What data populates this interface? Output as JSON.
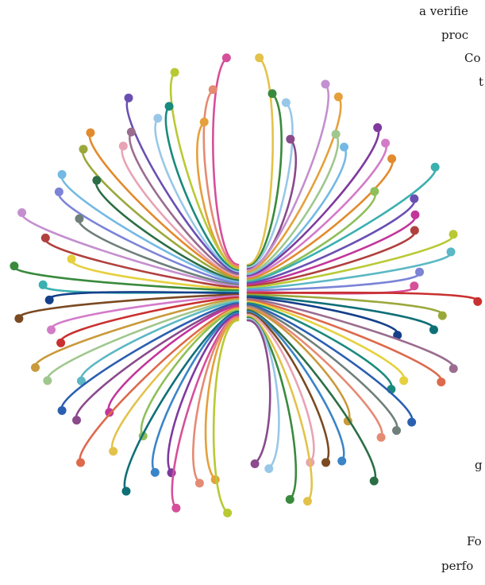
{
  "text_fragments": {
    "t1": "a verifie",
    "t2": "proc",
    "t3": "Co",
    "t4": "t",
    "t5": "g",
    "t6": "Fo",
    "t7": "perfo"
  },
  "palette": {
    "pink": "#d64f9a",
    "magenta": "#c2369a",
    "orchid": "#d37bc9",
    "lilac": "#c48fcf",
    "rose": "#e8a3b4",
    "salmon": "#e58a73",
    "coral": "#dd6a4c",
    "red": "#c9302f",
    "brick": "#b0413e",
    "orange": "#e38a2c",
    "tangerine": "#e5a03c",
    "gold": "#e3c24a",
    "mustard": "#c99a3a",
    "yellow": "#e6d03e",
    "olive": "#9aa83b",
    "lime": "#b9c934",
    "lightgreen": "#8fbf5a",
    "sage": "#9fc78e",
    "green": "#3a8a3d",
    "forest": "#2b6e46",
    "teal": "#1a8a7d",
    "darkteal": "#0f6f77",
    "cyan": "#5bb8c4",
    "turquoise": "#3bb0b0",
    "sky": "#74b9e3",
    "lightblue": "#98c7e8",
    "blue": "#3a84c8",
    "royal": "#2b5fb0",
    "navy": "#143f8a",
    "periwinkle": "#7b84d6",
    "violet": "#6a4fb3",
    "purple": "#7e3a9e",
    "plum": "#8a4a8c",
    "brown": "#7a4a22",
    "gray": "#6f7f7a",
    "mauve": "#9a6c8f"
  },
  "dot_colors": [
    "#d64f9a",
    "#c2369a",
    "#d37bc9",
    "#c48fcf",
    "#e8a3b4",
    "#e58a73",
    "#dd6a4c",
    "#c9302f",
    "#b0413e",
    "#e38a2c",
    "#e5a03c",
    "#e3c24a",
    "#c99a3a",
    "#e6d03e",
    "#9aa83b",
    "#b9c934",
    "#8fbf5a",
    "#9fc78e",
    "#3a8a3d",
    "#2b6e46",
    "#1a8a7d",
    "#0f6f77",
    "#5bb8c4",
    "#3bb0b0",
    "#74b9e3",
    "#98c7e8",
    "#3a84c8",
    "#2b5fb0",
    "#143f8a",
    "#7b84d6",
    "#6a4fb3",
    "#7e3a9e",
    "#8a4a8c",
    "#7a4a22",
    "#6f7f7a",
    "#9a6c8f"
  ]
}
